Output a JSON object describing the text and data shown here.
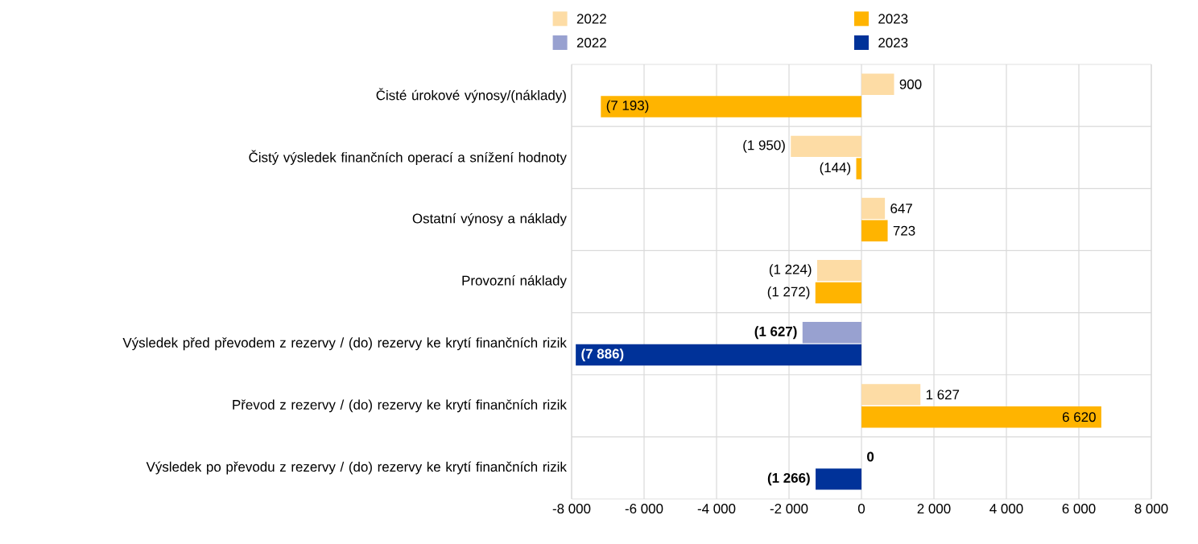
{
  "chart_data": {
    "type": "bar",
    "orientation": "horizontal",
    "legend": "top",
    "grid": true,
    "categories": [
      "Čisté úrokové výnosy/(náklady)",
      "Čistý výsledek finančních operací a snížení hodnoty",
      "Ostatní výnosy a náklady",
      "Provozní náklady",
      "Výsledek před převodem z rezervy / (do) rezervy ke krytí finančních rizik",
      "Převod z rezervy / (do) rezervy ke krytí finančních rizik",
      "Výsledek po převodu z rezervy / (do) rezervy ke krytí finančních rizik"
    ],
    "series": [
      {
        "name": "2022",
        "values": [
          900,
          -1950,
          647,
          -1224,
          -1627,
          1627,
          0
        ],
        "colors": [
          "#fddca5",
          "#fddca5",
          "#fddca5",
          "#fddca5",
          "#98a1d0",
          "#fddca5",
          "#98a1d0"
        ],
        "value_labels": [
          "900",
          "(1 950)",
          "647",
          "(1 224)",
          "**(1 627)**",
          "1 627",
          "**0**"
        ]
      },
      {
        "name": "2023",
        "values": [
          -7193,
          -144,
          723,
          -1272,
          -7886,
          6620,
          -1266
        ],
        "colors": [
          "#ffb400",
          "#ffb400",
          "#ffb400",
          "#ffb400",
          "#003299",
          "#ffb400",
          "#003299"
        ],
        "value_labels": [
          "(7 193)",
          "(144)",
          "723",
          "(1 272)",
          "**(7 886)**",
          "6 620",
          "**(1 266)**"
        ]
      }
    ],
    "xlim": [
      -8000,
      8000
    ],
    "xticks": [
      {
        "value": -8000,
        "label": "-8 000"
      },
      {
        "value": -6000,
        "label": "-6 000"
      },
      {
        "value": -4000,
        "label": "-4 000"
      },
      {
        "value": -2000,
        "label": "-2 000"
      },
      0,
      {
        "value": 2000,
        "label": "2 000"
      },
      {
        "value": 4000,
        "label": "4 000"
      },
      {
        "value": 6000,
        "label": "6 000"
      },
      {
        "value": 8000,
        "label": "8 000"
      }
    ]
  }
}
